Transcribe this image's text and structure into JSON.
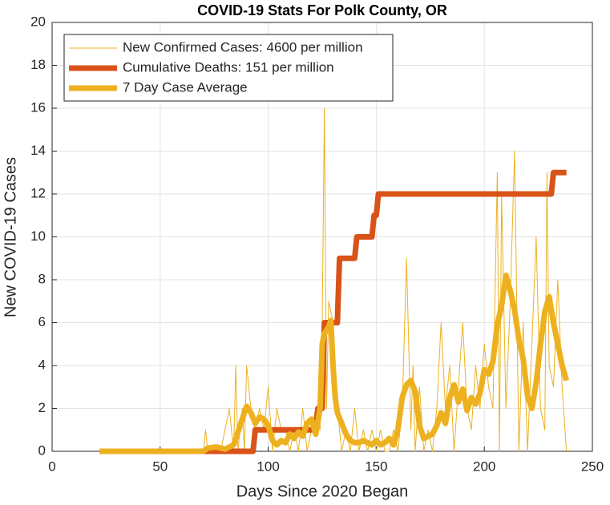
{
  "chart_data": {
    "type": "line",
    "title": "COVID-19 Stats For Polk County, OR",
    "x_label": "Days Since 2020 Began",
    "y_label": "New COVID-19 Cases",
    "xlim": [
      0,
      250
    ],
    "xticks": [
      0,
      50,
      100,
      150,
      200,
      250
    ],
    "ylim": [
      0,
      20
    ],
    "yticks": [
      0,
      2,
      4,
      6,
      8,
      10,
      12,
      14,
      16,
      18,
      20
    ],
    "grid": true,
    "legend": "upper-left",
    "series": [
      {
        "name": "New Confirmed Cases: 4600 per million",
        "color": "#EDB120",
        "x": [
          22,
          70,
          71,
          72,
          73,
          76,
          78,
          80,
          82,
          84,
          85,
          86,
          88,
          89,
          90,
          92,
          94,
          96,
          98,
          100,
          102,
          104,
          106,
          108,
          110,
          112,
          114,
          116,
          118,
          120,
          122,
          124,
          125,
          126,
          127,
          128,
          130,
          132,
          134,
          136,
          138,
          140,
          142,
          144,
          146,
          148,
          150,
          152,
          154,
          156,
          158,
          160,
          162,
          164,
          166,
          167,
          168,
          170,
          172,
          174,
          176,
          178,
          180,
          182,
          184,
          186,
          188,
          190,
          192,
          194,
          196,
          198,
          200,
          202,
          204,
          206,
          207,
          208,
          210,
          212,
          214,
          216,
          218,
          220,
          222,
          224,
          226,
          228,
          229,
          230,
          232,
          234,
          236,
          238
        ],
        "values": [
          0,
          0,
          1,
          0,
          0,
          0,
          0,
          1,
          2,
          0,
          4,
          0,
          2,
          0,
          4,
          2,
          1,
          2,
          1,
          3,
          0,
          2,
          1,
          1,
          0,
          1,
          0,
          2,
          0,
          1,
          2,
          1,
          6,
          16,
          2,
          7,
          6,
          2,
          0,
          1,
          0,
          2,
          0,
          1,
          0,
          1,
          0,
          1,
          0,
          0,
          1,
          0,
          2,
          9,
          1,
          4,
          0,
          3,
          0,
          1,
          0,
          2,
          6,
          2,
          4,
          0,
          3,
          6,
          2,
          1,
          4,
          2,
          5,
          3,
          2,
          13,
          0,
          12,
          2,
          7,
          14,
          0,
          6,
          0,
          5,
          10,
          2,
          1,
          13,
          4,
          3,
          8,
          3,
          0
        ]
      },
      {
        "name": "Cumulative Deaths: 151 per million",
        "color": "#D95319",
        "x": [
          22,
          93,
          94,
          122,
          123,
          125,
          126,
          132,
          133,
          140,
          141,
          148,
          149,
          150,
          151,
          231,
          232,
          238
        ],
        "values": [
          0,
          0,
          1,
          1,
          2,
          2,
          6,
          6,
          9,
          9,
          10,
          10,
          11,
          11,
          12,
          12,
          13,
          13
        ]
      },
      {
        "name": "7 Day Case Average",
        "color": "#EDB120",
        "x": [
          22,
          70,
          72,
          76,
          80,
          84,
          86,
          88,
          90,
          92,
          94,
          96,
          98,
          100,
          102,
          104,
          106,
          108,
          110,
          112,
          114,
          116,
          118,
          120,
          122,
          124,
          125,
          126,
          128,
          129,
          130,
          131,
          132,
          134,
          136,
          138,
          140,
          142,
          144,
          146,
          148,
          150,
          152,
          154,
          156,
          158,
          160,
          162,
          164,
          166,
          168,
          170,
          172,
          174,
          176,
          178,
          180,
          182,
          184,
          186,
          188,
          190,
          192,
          194,
          196,
          198,
          200,
          202,
          204,
          206,
          208,
          210,
          212,
          214,
          216,
          218,
          220,
          222,
          224,
          226,
          228,
          230,
          232,
          234,
          236,
          238
        ],
        "values": [
          0,
          0,
          0.15,
          0.2,
          0.1,
          0.3,
          0.9,
          1.5,
          2.1,
          1.8,
          1.3,
          1.6,
          1.5,
          1.2,
          0.5,
          0.3,
          0.5,
          0.4,
          0.8,
          0.6,
          0.9,
          0.7,
          1.3,
          1.5,
          0.8,
          2.0,
          5.0,
          5.5,
          5.8,
          6.1,
          4.0,
          2.5,
          1.8,
          1.3,
          0.8,
          0.5,
          0.4,
          0.4,
          0.5,
          0.4,
          0.3,
          0.5,
          0.3,
          0.4,
          0.6,
          0.3,
          1.0,
          2.5,
          3.1,
          3.3,
          2.8,
          1.2,
          0.6,
          0.7,
          0.8,
          1.2,
          1.8,
          1.3,
          2.5,
          3.1,
          2.3,
          2.9,
          1.9,
          2.5,
          2.2,
          2.7,
          3.8,
          3.6,
          4.2,
          5.9,
          6.8,
          8.2,
          7.5,
          6.6,
          5.2,
          4.3,
          2.6,
          2.0,
          3.2,
          5.0,
          6.5,
          7.2,
          6.0,
          5.0,
          4.0,
          3.3
        ]
      }
    ]
  }
}
